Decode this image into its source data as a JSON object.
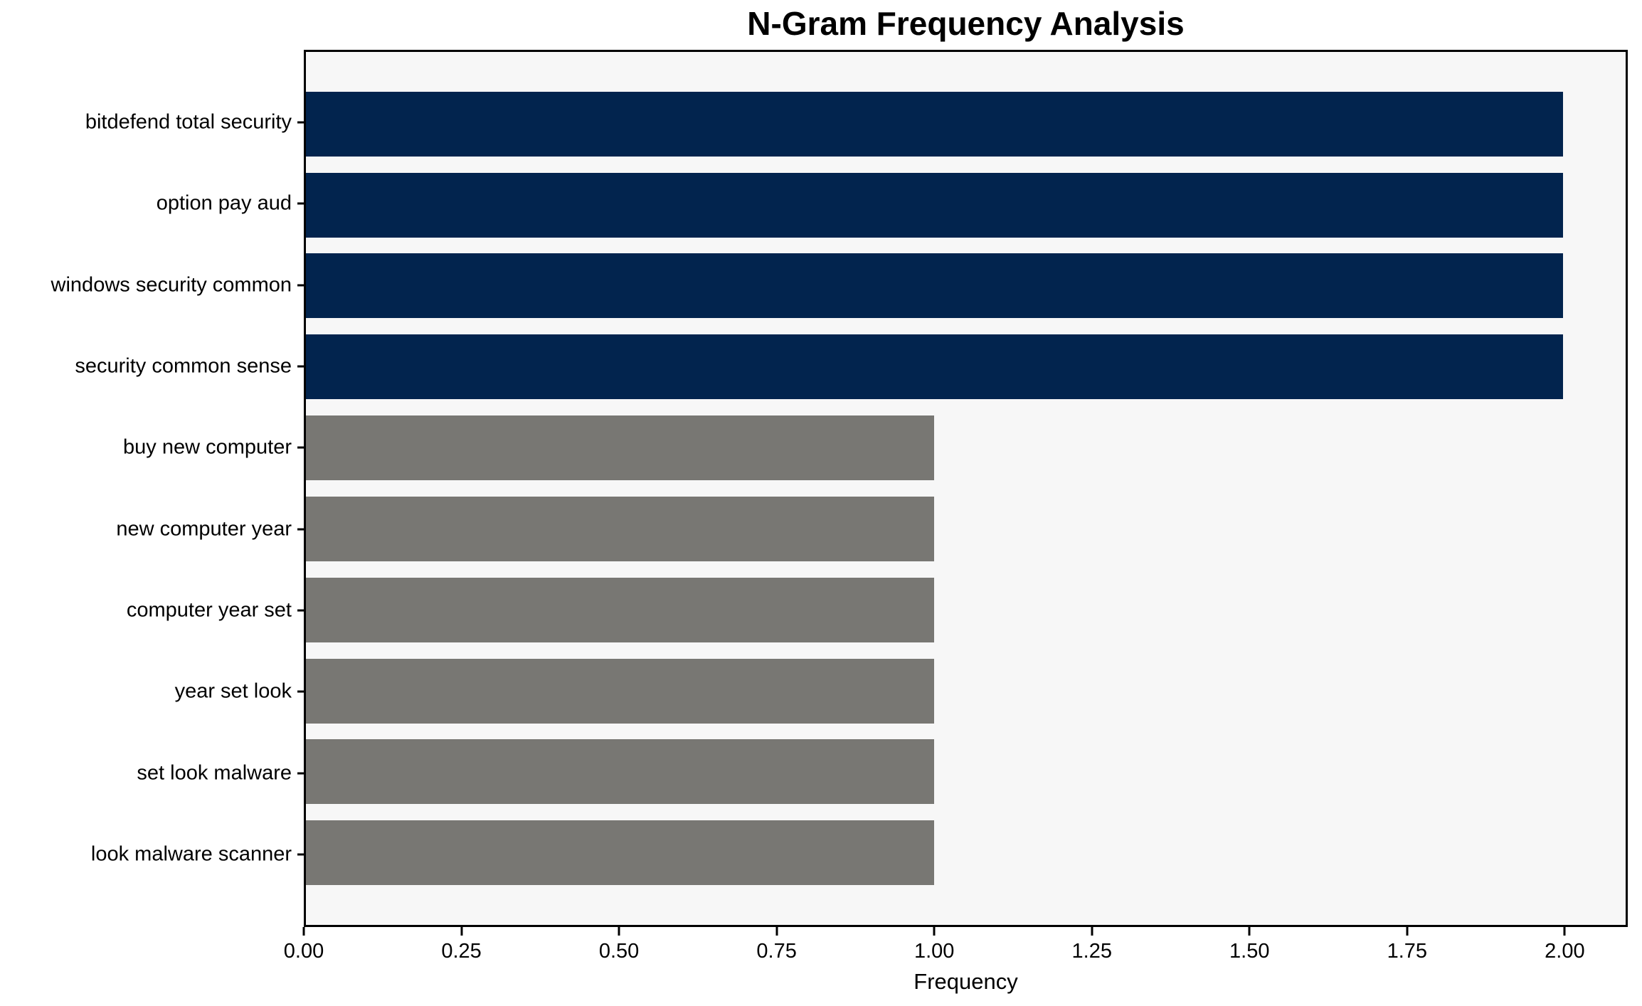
{
  "title": "N-Gram Frequency Analysis",
  "colors": {
    "highlight_bar": "#02244e",
    "normal_bar": "#787773",
    "plot_background": "#f7f7f7",
    "figure_background": "#ffffff",
    "spine": "#000000",
    "text": "#000000"
  },
  "chart_data": {
    "type": "bar",
    "orientation": "horizontal",
    "title": "N-Gram Frequency Analysis",
    "xlabel": "Frequency",
    "ylabel": "",
    "categories": [
      "bitdefend total security",
      "option pay aud",
      "windows security common",
      "security common sense",
      "buy new computer",
      "new computer year",
      "computer year set",
      "year set look",
      "set look malware",
      "look malware scanner"
    ],
    "values": [
      2,
      2,
      2,
      2,
      1,
      1,
      1,
      1,
      1,
      1
    ],
    "bar_colors": [
      "#02244e",
      "#02244e",
      "#02244e",
      "#02244e",
      "#787773",
      "#787773",
      "#787773",
      "#787773",
      "#787773",
      "#787773"
    ],
    "xlim": [
      0,
      2.1
    ],
    "xticks": [
      0,
      0.25,
      0.5,
      0.75,
      1.0,
      1.25,
      1.5,
      1.75,
      2.0
    ],
    "xtick_labels": [
      "0.00",
      "0.25",
      "0.50",
      "0.75",
      "1.00",
      "1.25",
      "1.50",
      "1.75",
      "2.00"
    ],
    "grid": false,
    "legend": null,
    "bar_height_fraction": 0.8,
    "y_margin_units": 0.49
  }
}
